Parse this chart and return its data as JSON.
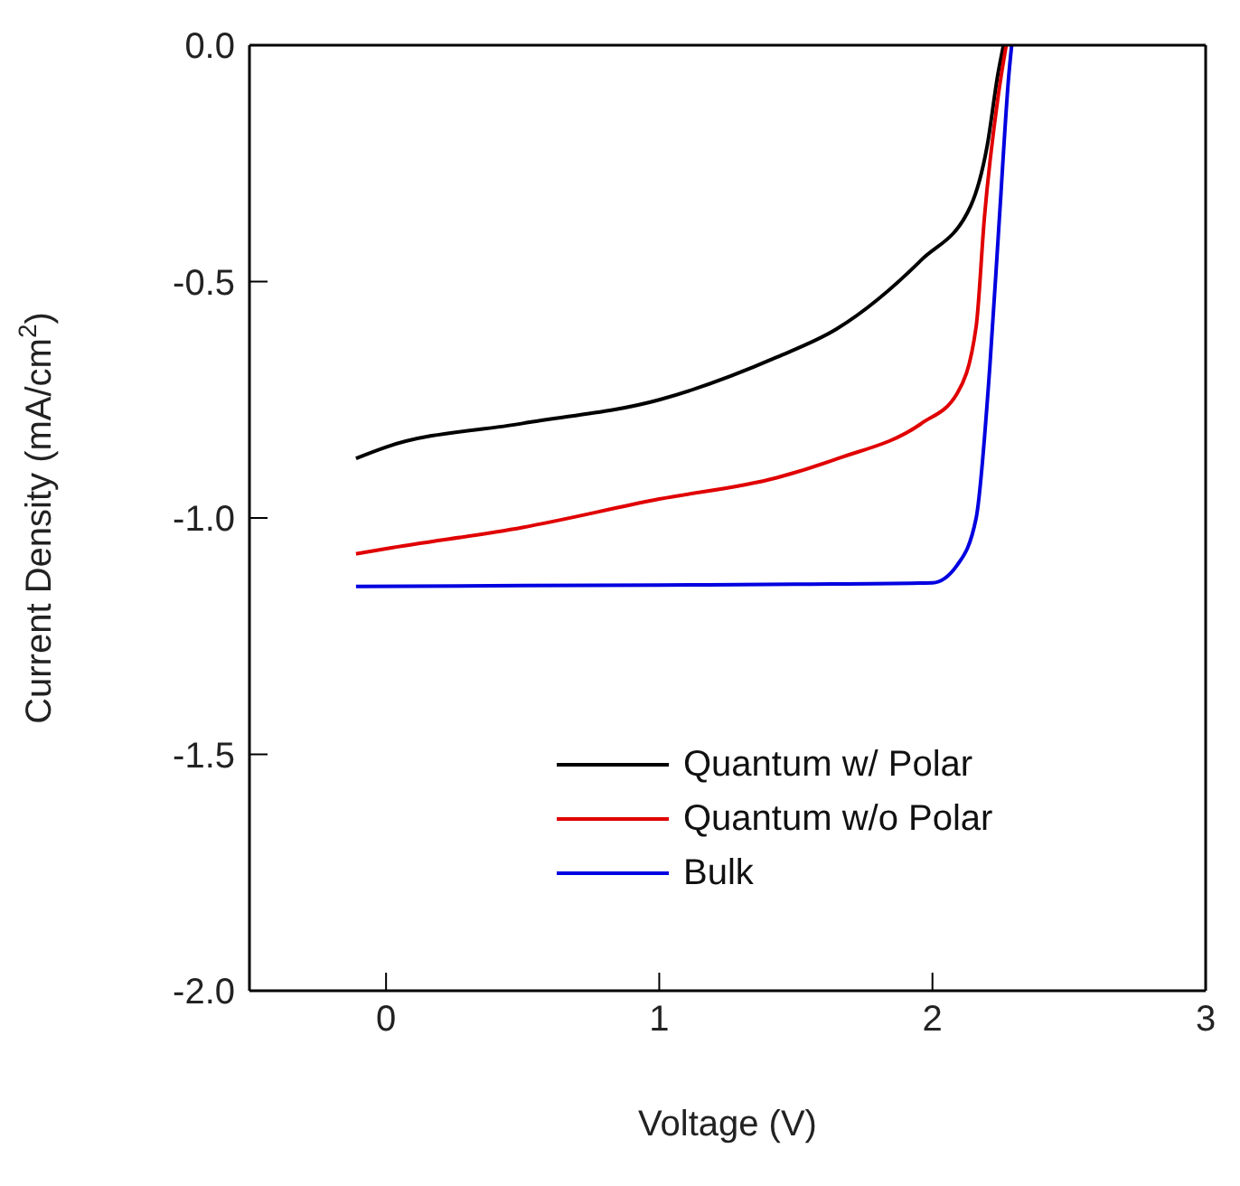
{
  "chart_data": {
    "type": "line",
    "xlabel": "Voltage (V)",
    "ylabel": "Current Density (mA/cm$^{2}$)",
    "xlim": [
      -0.5,
      3
    ],
    "xticks": [
      0,
      1,
      2,
      3
    ],
    "ylim": [
      -2,
      0
    ],
    "yticks": [
      {
        "value": -2,
        "label": "-2.0"
      },
      -1.5,
      {
        "value": -1,
        "label": "-1.0"
      },
      -0.5,
      {
        "value": 0,
        "label": "0.0"
      }
    ],
    "grid": false,
    "legend": "bottom right",
    "marker": "none",
    "line_style": "solid",
    "series": [
      {
        "name": "Quantum w/ Polar",
        "color": "#000000",
        "x": [
          -0.11,
          0,
          0.5,
          1,
          1.43,
          1.65,
          1.96,
          2.14,
          2.2,
          2.24,
          2.26
        ],
        "values": [
          -0.874,
          -0.85,
          -0.8,
          -0.75,
          -0.66,
          -0.6,
          -0.454,
          -0.34,
          -0.214,
          -0.06,
          0
        ]
      },
      {
        "name": "Quantum w/o Polar",
        "color": "#e00000",
        "x": [
          -0.11,
          0,
          0.5,
          1,
          1.43,
          1.65,
          1.96,
          2.09,
          2.16,
          2.19,
          2.24,
          2.27
        ],
        "values": [
          -1.076,
          -1.065,
          -1.02,
          -0.96,
          -0.915,
          -0.875,
          -0.8,
          -0.737,
          -0.595,
          -0.366,
          -0.11,
          0
        ]
      },
      {
        "name": "Bulk",
        "color": "#0000e0",
        "x": [
          -0.11,
          0.5,
          1,
          1.5,
          2,
          2.09,
          2.16,
          2.21,
          2.245,
          2.28,
          2.29
        ],
        "values": [
          -1.145,
          -1.143,
          -1.142,
          -1.14,
          -1.137,
          -1.1,
          -1,
          -0.68,
          -0.366,
          -0.06,
          0
        ]
      }
    ]
  }
}
